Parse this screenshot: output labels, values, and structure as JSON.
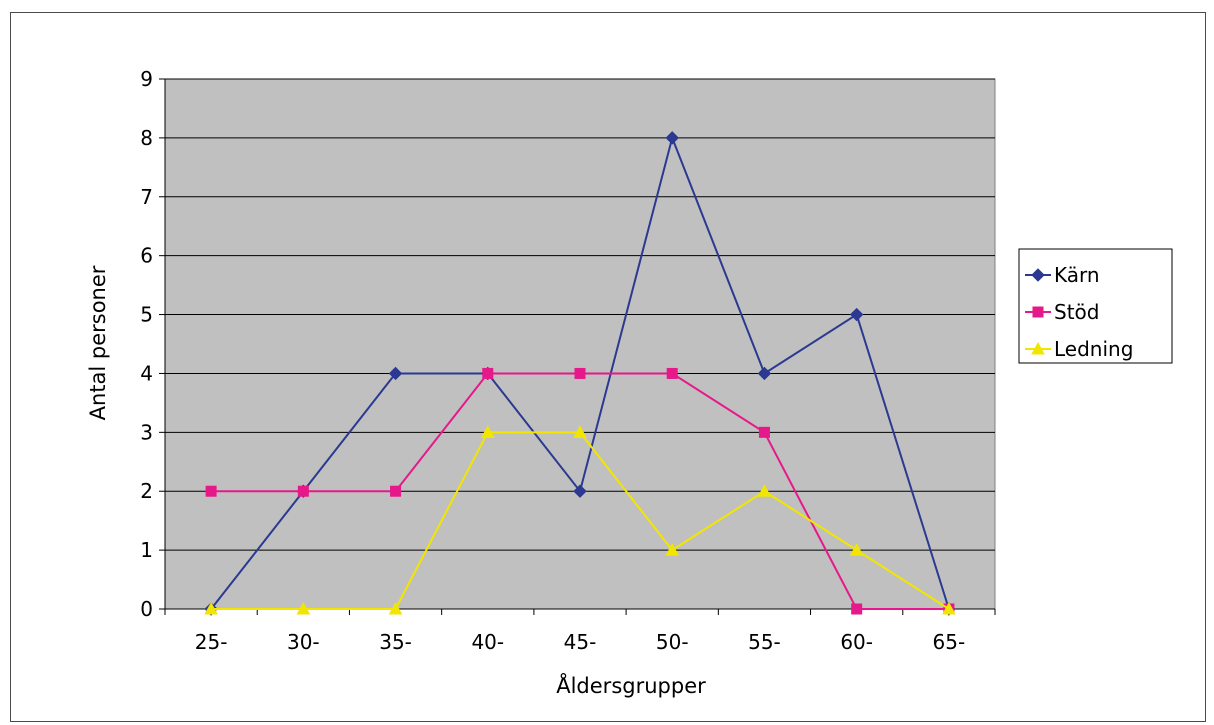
{
  "chart_data": {
    "type": "line",
    "title": "",
    "xlabel": "Åldersgrupper",
    "ylabel": "Antal personer",
    "categories": [
      "25-",
      "30-",
      "35-",
      "40-",
      "45-",
      "50-",
      "55-",
      "60-",
      "65-"
    ],
    "ylim": [
      0,
      9
    ],
    "yticks": [
      0,
      1,
      2,
      3,
      4,
      5,
      6,
      7,
      8,
      9
    ],
    "grid": true,
    "legend_position": "right",
    "series": [
      {
        "name": "Kärn",
        "marker": "diamond",
        "color": "#2b3990",
        "values": [
          0,
          2,
          4,
          4,
          2,
          8,
          4,
          5,
          0
        ]
      },
      {
        "name": "Stöd",
        "marker": "square",
        "color": "#e6198a",
        "values": [
          2,
          2,
          2,
          4,
          4,
          4,
          3,
          0,
          0
        ]
      },
      {
        "name": "Ledning",
        "marker": "triangle",
        "color": "#f2e600",
        "values": [
          0,
          0,
          0,
          3,
          3,
          1,
          2,
          1,
          0
        ]
      }
    ],
    "plot_background": "#c0c0c0"
  }
}
